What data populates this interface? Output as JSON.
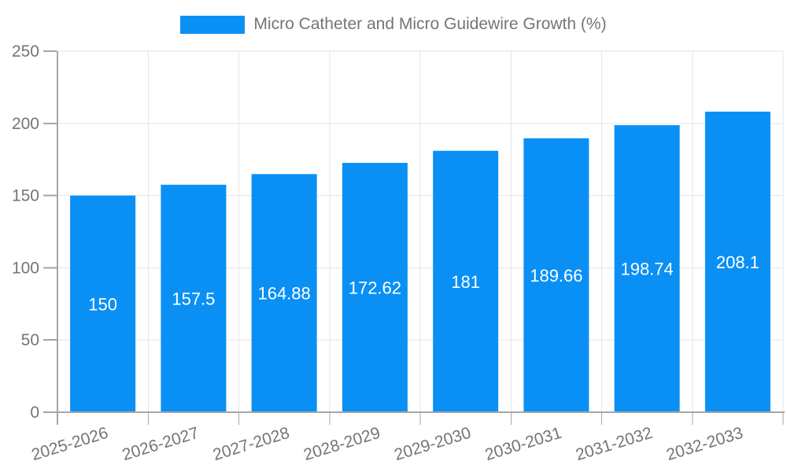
{
  "chart_data": {
    "type": "bar",
    "title": "Micro Catheter and Micro Guidewire Growth (%)",
    "categories": [
      "2025-2026",
      "2026-2027",
      "2027-2028",
      "2028-2029",
      "2029-2030",
      "2030-2031",
      "2031-2032",
      "2032-2033"
    ],
    "values": [
      150,
      157.5,
      164.88,
      172.62,
      181,
      189.66,
      198.74,
      208.1
    ],
    "value_labels": [
      "150",
      "157.5",
      "164.88",
      "172.62",
      "181",
      "189.66",
      "198.74",
      "208.1"
    ],
    "xlabel": "",
    "ylabel": "",
    "ylim": [
      0,
      250
    ],
    "yticks": [
      0,
      50,
      100,
      150,
      200,
      250
    ],
    "grid": "on",
    "legend_position": "top-center",
    "x_label_rotation_deg": -17,
    "colors": {
      "bar": "#0A90F5",
      "bar_label": "#ffffff",
      "axis": "#a6a6a6",
      "grid": "#e6e6e6",
      "text": "#757575",
      "background": "#ffffff"
    }
  }
}
